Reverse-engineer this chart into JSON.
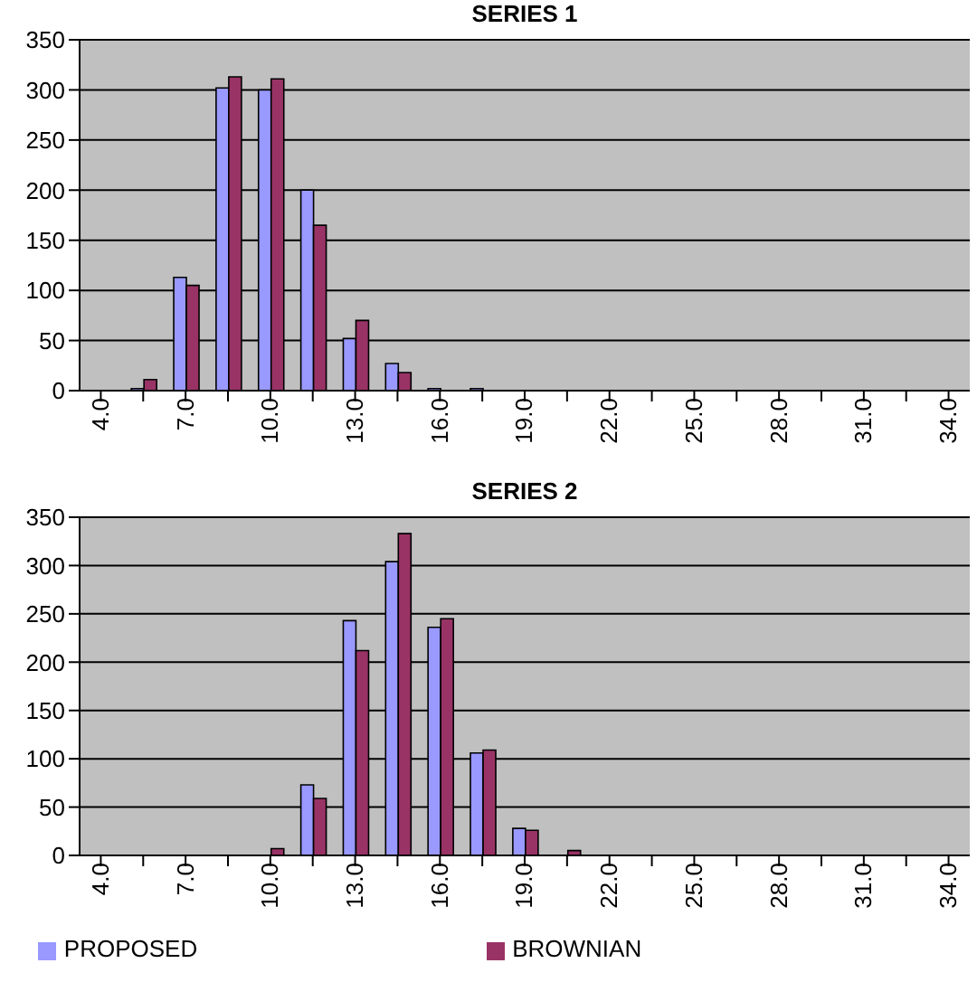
{
  "chart_data": [
    {
      "type": "bar",
      "title": "SERIES 1",
      "categories": [
        "4.0",
        null,
        "7.0",
        null,
        "10.0",
        null,
        "13.0",
        null,
        "16.0",
        null,
        "19.0",
        null,
        "22.0",
        null,
        "25.0",
        null,
        "28.0",
        null,
        "31.0",
        null,
        "34.0"
      ],
      "series": [
        {
          "color": "#9999ff",
          "values": [
            0,
            2,
            113,
            302,
            300,
            200,
            52,
            27,
            2,
            2,
            0,
            0,
            0,
            0,
            0,
            0,
            0,
            0,
            0,
            0,
            0
          ]
        },
        {
          "color": "#993366",
          "values": [
            0,
            11,
            105,
            313,
            311,
            165,
            70,
            18,
            0,
            0,
            0,
            0,
            0,
            0,
            0,
            0,
            0,
            0,
            0,
            0,
            0
          ]
        }
      ],
      "ylim": [
        0,
        350
      ],
      "yticks": [
        0,
        50,
        100,
        150,
        200,
        250,
        300,
        350
      ],
      "grid": "y",
      "legend": false
    },
    {
      "type": "bar",
      "title": "SERIES 2",
      "categories": [
        "4.0",
        null,
        "7.0",
        null,
        "10.0",
        null,
        "13.0",
        null,
        "16.0",
        null,
        "19.0",
        null,
        "22.0",
        null,
        "25.0",
        null,
        "28.0",
        null,
        "31.0",
        null,
        "34.0"
      ],
      "series": [
        {
          "name": "PROPOSED",
          "color": "#9999ff",
          "values": [
            0,
            0,
            0,
            0,
            null,
            73,
            243,
            304,
            236,
            106,
            28,
            null,
            0,
            0,
            0,
            0,
            0,
            0,
            0,
            0,
            0
          ]
        },
        {
          "name": "BROWNIAN",
          "color": "#993366",
          "values": [
            0,
            0,
            0,
            0,
            7,
            59,
            212,
            333,
            245,
            109,
            26,
            5,
            0,
            0,
            0,
            0,
            0,
            0,
            0,
            0,
            0
          ]
        }
      ],
      "ylim": [
        0,
        350
      ],
      "yticks": [
        0,
        50,
        100,
        150,
        200,
        250,
        300,
        350
      ],
      "grid": "y",
      "legend": "bottom"
    }
  ]
}
